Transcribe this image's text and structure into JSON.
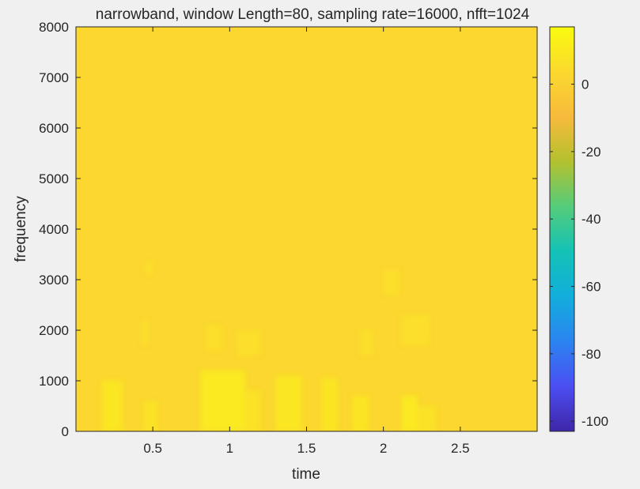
{
  "chart_data": {
    "type": "heatmap",
    "title": "narrowband, window Length=80, sampling rate=16000, nfft=1024",
    "xlabel": "time",
    "ylabel": "frequency",
    "xlim": [
      0,
      3.0
    ],
    "ylim": [
      0,
      8000
    ],
    "x_ticks": [
      {
        "value": 0.5,
        "label": "0.5"
      },
      {
        "value": 1,
        "label": "1"
      },
      {
        "value": 1.5,
        "label": "1.5"
      },
      {
        "value": 2,
        "label": "2"
      },
      {
        "value": 2.5,
        "label": "2.5"
      }
    ],
    "y_ticks": [
      {
        "value": 0,
        "label": "0"
      },
      {
        "value": 1000,
        "label": "1000"
      },
      {
        "value": 2000,
        "label": "2000"
      },
      {
        "value": 3000,
        "label": "3000"
      },
      {
        "value": 4000,
        "label": "4000"
      },
      {
        "value": 5000,
        "label": "5000"
      },
      {
        "value": 6000,
        "label": "6000"
      },
      {
        "value": 7000,
        "label": "7000"
      },
      {
        "value": 8000,
        "label": "8000"
      }
    ],
    "background_value": 3,
    "highlights": [
      {
        "t0": 0.17,
        "t1": 0.3,
        "f0": 0,
        "f1": 1000,
        "value": 10
      },
      {
        "t0": 0.44,
        "t1": 0.53,
        "f0": 0,
        "f1": 600,
        "value": 8
      },
      {
        "t0": 0.81,
        "t1": 1.1,
        "f0": 0,
        "f1": 1200,
        "value": 11
      },
      {
        "t0": 1.09,
        "t1": 1.2,
        "f0": 0,
        "f1": 800,
        "value": 8
      },
      {
        "t0": 1.3,
        "t1": 1.47,
        "f0": 0,
        "f1": 1100,
        "value": 10
      },
      {
        "t0": 1.6,
        "t1": 1.7,
        "f0": 0,
        "f1": 1050,
        "value": 9
      },
      {
        "t0": 1.8,
        "t1": 1.9,
        "f0": 0,
        "f1": 700,
        "value": 9
      },
      {
        "t0": 2.12,
        "t1": 2.22,
        "f0": 0,
        "f1": 700,
        "value": 11
      },
      {
        "t0": 2.22,
        "t1": 2.34,
        "f0": 0,
        "f1": 500,
        "value": 8
      },
      {
        "t0": 0.45,
        "t1": 0.5,
        "f0": 3100,
        "f1": 3350,
        "value": 6
      },
      {
        "t0": 0.43,
        "t1": 0.47,
        "f0": 1700,
        "f1": 2200,
        "value": 6
      },
      {
        "t0": 0.85,
        "t1": 0.95,
        "f0": 1600,
        "f1": 2100,
        "value": 6
      },
      {
        "t0": 1.05,
        "t1": 1.2,
        "f0": 1500,
        "f1": 2000,
        "value": 6
      },
      {
        "t0": 1.85,
        "t1": 1.93,
        "f0": 1500,
        "f1": 2000,
        "value": 6
      },
      {
        "t0": 2.0,
        "t1": 2.1,
        "f0": 2700,
        "f1": 3200,
        "value": 6
      },
      {
        "t0": 2.12,
        "t1": 2.3,
        "f0": 1700,
        "f1": 2300,
        "value": 6
      }
    ],
    "colorbar": {
      "min": -103,
      "max": 17,
      "ticks": [
        {
          "value": 0,
          "label": "0"
        },
        {
          "value": -20,
          "label": "-20"
        },
        {
          "value": -40,
          "label": "-40"
        },
        {
          "value": -60,
          "label": "-60"
        },
        {
          "value": -80,
          "label": "-80"
        },
        {
          "value": -100,
          "label": "-100"
        }
      ],
      "colormap": "parula",
      "stops": [
        "#3e26a8",
        "#4b4ef2",
        "#2b84f0",
        "#12aedc",
        "#13c2b6",
        "#55cc7b",
        "#b3c12f",
        "#f8ba3c",
        "#fbd92e",
        "#f9fb0e"
      ]
    },
    "legend": "none",
    "grid": false
  }
}
